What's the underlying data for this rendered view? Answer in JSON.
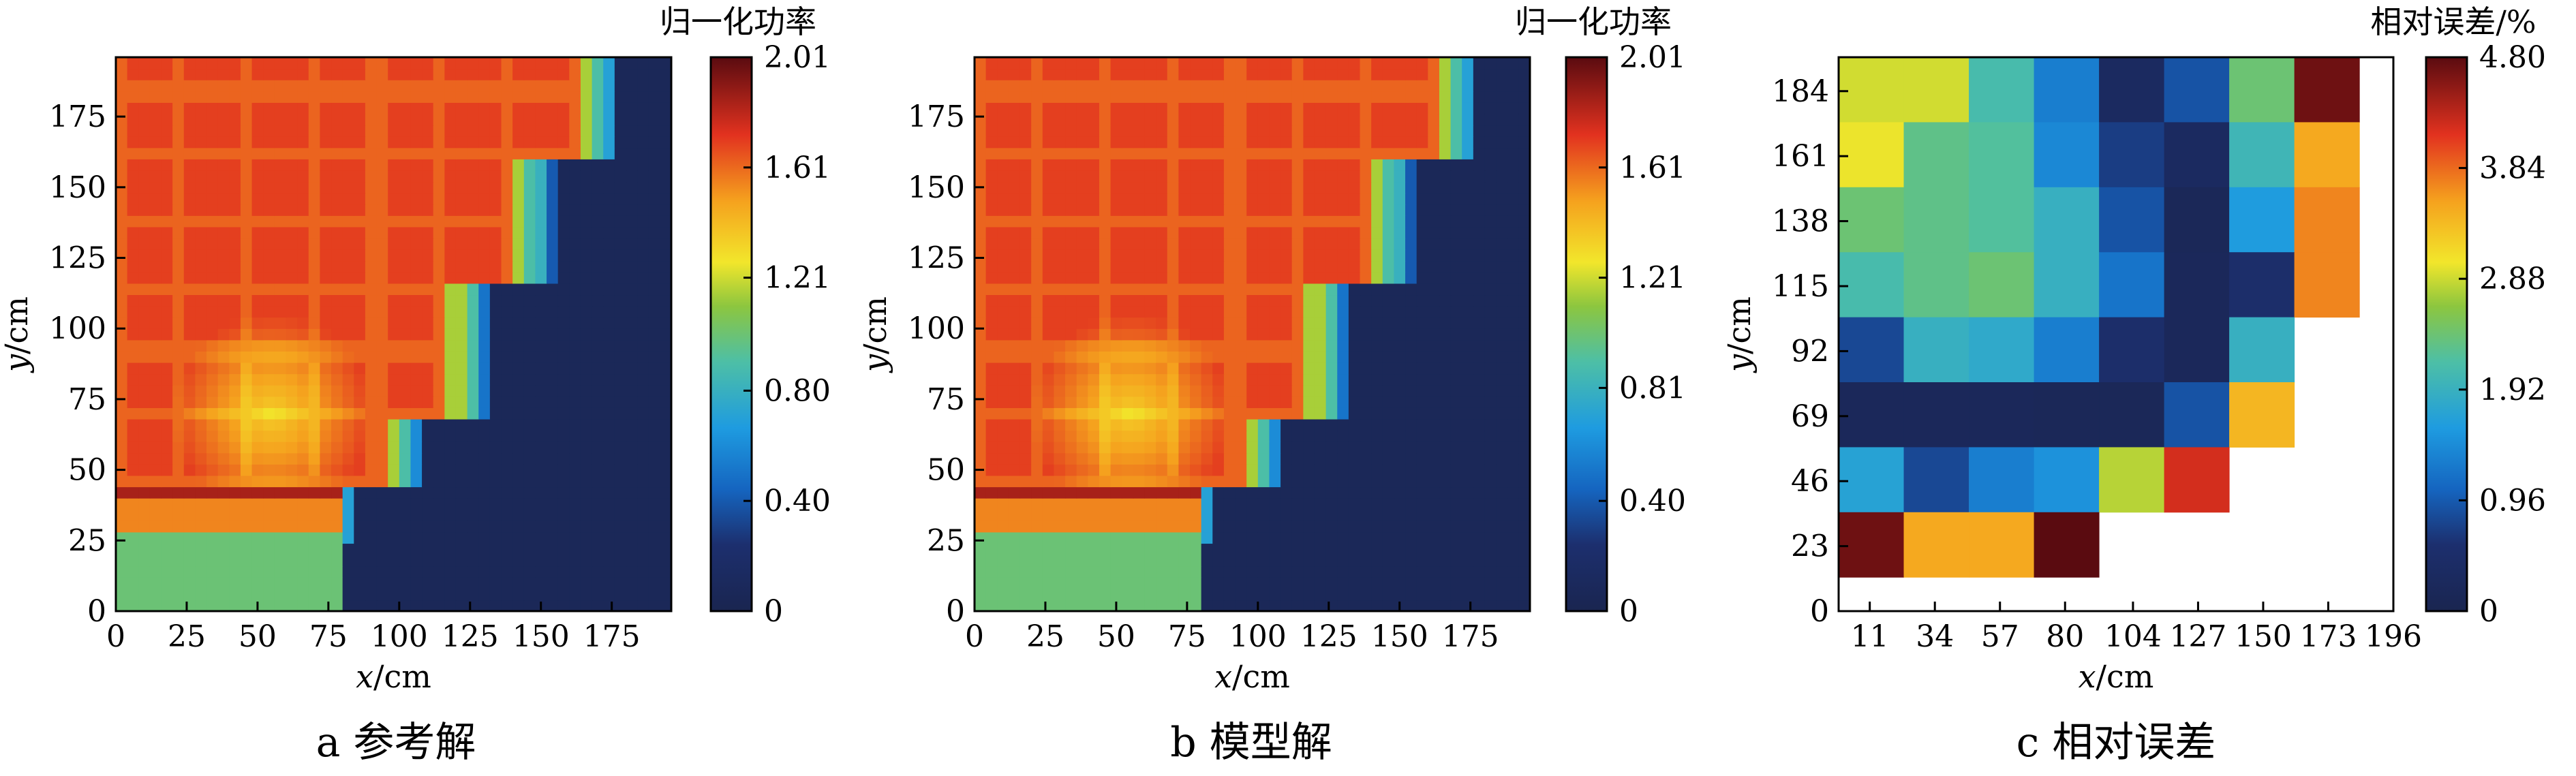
{
  "chart_data": [
    {
      "type": "heatmap",
      "panel_label": "a",
      "caption": "参考解",
      "xlabel_var": "x",
      "xlabel_unit": "/cm",
      "ylabel_var": "y",
      "ylabel_unit": "/cm",
      "xlim": [
        0,
        196
      ],
      "ylim": [
        0,
        196
      ],
      "xticks": [
        "0",
        "25",
        "50",
        "75",
        "100",
        "125",
        "150",
        "175"
      ],
      "yticks": [
        "0",
        "25",
        "50",
        "75",
        "100",
        "125",
        "150",
        "175"
      ],
      "colorbar_title": "归一化功率",
      "colorbar_ticks": [
        "0",
        "0.40",
        "0.80",
        "1.21",
        "1.61",
        "2.01"
      ],
      "colorbar_range": [
        0,
        2.01
      ],
      "variant": "reference"
    },
    {
      "type": "heatmap",
      "panel_label": "b",
      "caption": "模型解",
      "xlabel_var": "x",
      "xlabel_unit": "/cm",
      "ylabel_var": "y",
      "ylabel_unit": "/cm",
      "xlim": [
        0,
        196
      ],
      "ylim": [
        0,
        196
      ],
      "xticks": [
        "0",
        "25",
        "50",
        "75",
        "100",
        "125",
        "150",
        "175"
      ],
      "yticks": [
        "0",
        "25",
        "50",
        "75",
        "100",
        "125",
        "150",
        "175"
      ],
      "colorbar_title": "归一化功率",
      "colorbar_ticks": [
        "0",
        "0.40",
        "0.81",
        "1.21",
        "1.61",
        "2.01"
      ],
      "colorbar_range": [
        0,
        2.01
      ],
      "variant": "model"
    },
    {
      "type": "heatmap",
      "panel_label": "c",
      "caption": "相对误差",
      "xlabel_var": "x",
      "xlabel_unit": "/cm",
      "ylabel_var": "y",
      "ylabel_unit": "/cm",
      "xlim": [
        0,
        196
      ],
      "ylim": [
        0,
        196
      ],
      "xticks": [
        "11",
        "34",
        "57",
        "80",
        "104",
        "127",
        "150",
        "173",
        "196"
      ],
      "yticks": [
        "0",
        "23",
        "46",
        "69",
        "92",
        "115",
        "138",
        "161",
        "184"
      ],
      "colorbar_title": "相对误差/%",
      "colorbar_ticks": [
        "0",
        "0.96",
        "1.92",
        "2.88",
        "3.84",
        "4.80"
      ],
      "colorbar_range": [
        0,
        4.8
      ],
      "rows_top_to_bottom": [
        [
          2.9,
          2.9,
          2.1,
          1.3,
          0.3,
          0.9,
          2.4,
          4.7,
          null
        ],
        [
          3.0,
          2.3,
          2.2,
          1.4,
          0.7,
          0.3,
          2.0,
          3.5,
          null
        ],
        [
          2.4,
          2.3,
          2.2,
          1.9,
          0.9,
          0.15,
          1.6,
          3.7,
          null
        ],
        [
          2.1,
          2.3,
          2.4,
          1.9,
          1.2,
          0.2,
          0.5,
          3.7,
          null
        ],
        [
          0.8,
          1.9,
          1.8,
          1.3,
          0.5,
          0.2,
          1.9,
          null,
          null
        ],
        [
          0.2,
          0.2,
          0.2,
          0.15,
          0.15,
          0.9,
          3.4,
          null,
          null
        ],
        [
          1.7,
          0.8,
          1.3,
          1.5,
          2.8,
          4.2,
          null,
          null,
          null
        ],
        [
          4.7,
          3.5,
          3.5,
          4.8,
          null,
          null,
          null,
          null,
          null
        ]
      ]
    }
  ]
}
